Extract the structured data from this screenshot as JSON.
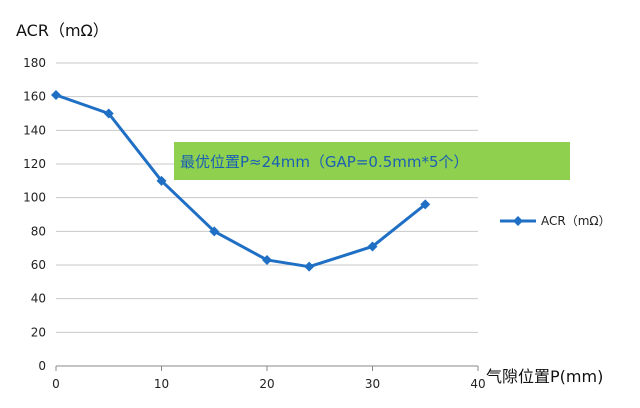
{
  "chart_data": {
    "type": "line",
    "title": "",
    "ylabel": "ACR（mΩ）",
    "xlabel": "气隙位置P(mm)",
    "xlim": [
      0,
      40
    ],
    "ylim": [
      0,
      180
    ],
    "xticks": [
      0,
      10,
      20,
      30,
      40
    ],
    "yticks": [
      0,
      20,
      40,
      60,
      80,
      100,
      120,
      140,
      160,
      180
    ],
    "grid": "horizontal",
    "legend_position": "right",
    "series": [
      {
        "name": "ACR（mΩ）",
        "color": "#1f6fc5",
        "marker": "diamond",
        "x": [
          0,
          5,
          10,
          15,
          20,
          24,
          30,
          35
        ],
        "values": [
          161,
          150,
          110,
          80,
          63,
          59,
          71,
          96
        ]
      }
    ],
    "annotation": {
      "text": "最优位置P≈24mm（GAP=0.5mm*5个）",
      "background": "#8fd14f",
      "text_color": "#1a5fb4"
    }
  }
}
